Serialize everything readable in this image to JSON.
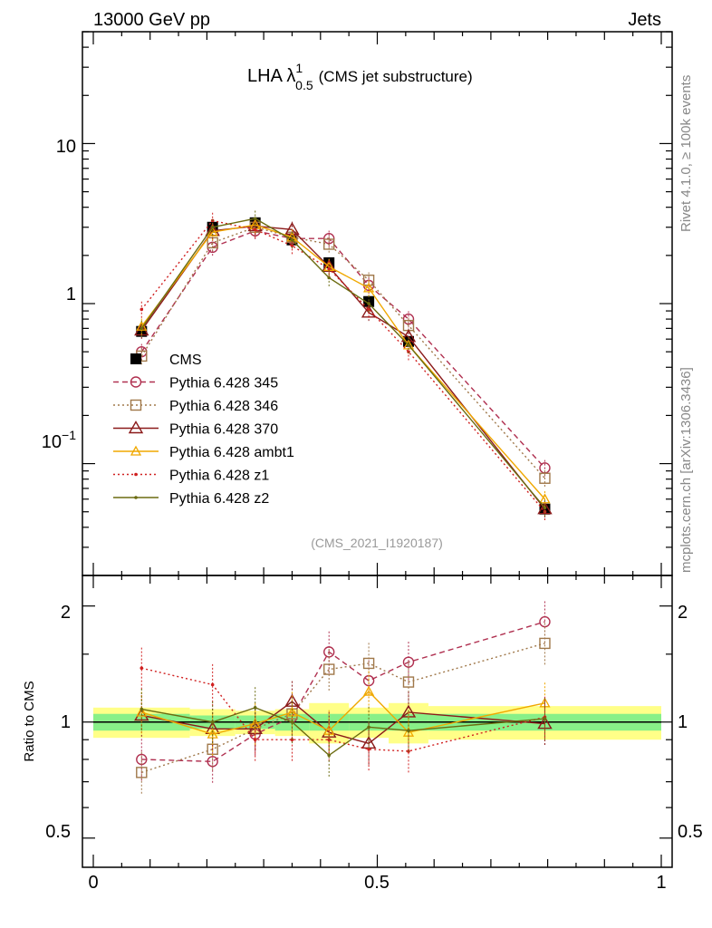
{
  "header": {
    "left": "13000 GeV pp",
    "right": "Jets"
  },
  "side_labels": {
    "rivet": "Rivet 4.1.0, ≥ 100k events",
    "mcplots": "mcplots.cern.ch [arXiv:1306.3436]"
  },
  "plot_title": {
    "main": "LHA λ",
    "sup": "1",
    "sub": "0.5",
    "suffix": "(CMS jet substructure)"
  },
  "analysis_id": "(CMS_2021_I1920187)",
  "chart_data": [
    {
      "type": "line",
      "panel": "main",
      "yscale": "log",
      "ylim": [
        0.02,
        50
      ],
      "xlim": [
        0,
        1
      ],
      "y_tick_labels": [
        "10",
        "1"
      ],
      "y_tick_label_exp": {
        "base": "10",
        "exp": "−1"
      },
      "x": [
        0.085,
        0.21,
        0.285,
        0.35,
        0.415,
        0.485,
        0.555,
        0.795
      ],
      "series": [
        {
          "name": "CMS",
          "color": "#000000",
          "marker": "filled-square",
          "dash": "",
          "values": [
            0.67,
            3.0,
            3.2,
            2.5,
            1.8,
            1.03,
            0.58,
            0.052
          ]
        },
        {
          "name": "Pythia 6.428 345",
          "color": "#b03050",
          "marker": "open-circle",
          "dash": "6,4",
          "values": [
            0.5,
            2.25,
            2.85,
            2.55,
            2.55,
            1.3,
            0.8,
            0.094
          ]
        },
        {
          "name": "Pythia 6.428 346",
          "color": "#a0784a",
          "marker": "open-square",
          "dash": "2,3",
          "values": [
            0.47,
            2.4,
            3.0,
            2.6,
            2.35,
            1.4,
            0.73,
            0.081
          ]
        },
        {
          "name": "Pythia 6.428 370",
          "color": "#8b1a1a",
          "marker": "open-triangle",
          "dash": "",
          "values": [
            0.68,
            2.85,
            3.05,
            2.9,
            1.7,
            0.88,
            0.62,
            0.052
          ]
        },
        {
          "name": "Pythia 6.428 ambt1",
          "color": "#f0a800",
          "marker": "open-triangle-small",
          "dash": "",
          "values": [
            0.72,
            2.8,
            3.1,
            2.6,
            1.7,
            1.25,
            0.55,
            0.06
          ]
        },
        {
          "name": "Pythia 6.428 z1",
          "color": "#d02020",
          "marker": "dot",
          "dash": "2,3",
          "values": [
            0.92,
            3.3,
            2.9,
            2.3,
            1.65,
            0.92,
            0.5,
            0.05
          ]
        },
        {
          "name": "Pythia 6.428 z2",
          "color": "#6b6b10",
          "marker": "dot",
          "dash": "",
          "values": [
            0.7,
            3.0,
            3.4,
            2.5,
            1.45,
            1.0,
            0.55,
            0.053
          ]
        }
      ]
    },
    {
      "type": "line",
      "panel": "ratio",
      "ylabel": "Ratio to CMS",
      "yscale": "log",
      "ylim": [
        0.42,
        2.4
      ],
      "xlim": [
        0,
        1
      ],
      "y_tick_labels": [
        "2",
        "1",
        "0.5"
      ],
      "x_tick_labels": [
        "0",
        "0.5",
        "1"
      ],
      "x": [
        0.085,
        0.21,
        0.285,
        0.35,
        0.415,
        0.485,
        0.555,
        0.795
      ],
      "bins": [
        [
          0,
          0.17
        ],
        [
          0.17,
          0.25
        ],
        [
          0.25,
          0.32
        ],
        [
          0.32,
          0.38
        ],
        [
          0.38,
          0.45
        ],
        [
          0.45,
          0.52
        ],
        [
          0.52,
          0.59
        ],
        [
          0.59,
          1.0
        ]
      ],
      "band_green": [
        0.05,
        0.04,
        0.04,
        0.05,
        0.05,
        0.05,
        0.05,
        0.05
      ],
      "band_yellow": [
        0.09,
        0.08,
        0.07,
        0.08,
        0.12,
        0.09,
        0.12,
        0.1
      ],
      "series": [
        {
          "name": "Pythia 6.428 345",
          "values": [
            0.8,
            0.79,
            0.93,
            1.03,
            1.52,
            1.28,
            1.43,
            1.82
          ]
        },
        {
          "name": "Pythia 6.428 346",
          "values": [
            0.74,
            0.85,
            0.96,
            1.05,
            1.37,
            1.42,
            1.27,
            1.6
          ]
        },
        {
          "name": "Pythia 6.428 370",
          "values": [
            1.04,
            0.96,
            0.96,
            1.13,
            0.94,
            0.88,
            1.06,
            0.99
          ]
        },
        {
          "name": "Pythia 6.428 ambt1",
          "values": [
            1.06,
            0.93,
            0.99,
            1.06,
            0.95,
            1.2,
            0.94,
            1.12
          ]
        },
        {
          "name": "Pythia 6.428 z1",
          "values": [
            1.38,
            1.25,
            0.9,
            0.9,
            0.9,
            0.85,
            0.84,
            1.03
          ]
        },
        {
          "name": "Pythia 6.428 z2",
          "values": [
            1.08,
            1.0,
            1.09,
            1.0,
            0.82,
            0.97,
            0.95,
            1.02
          ]
        }
      ]
    }
  ]
}
